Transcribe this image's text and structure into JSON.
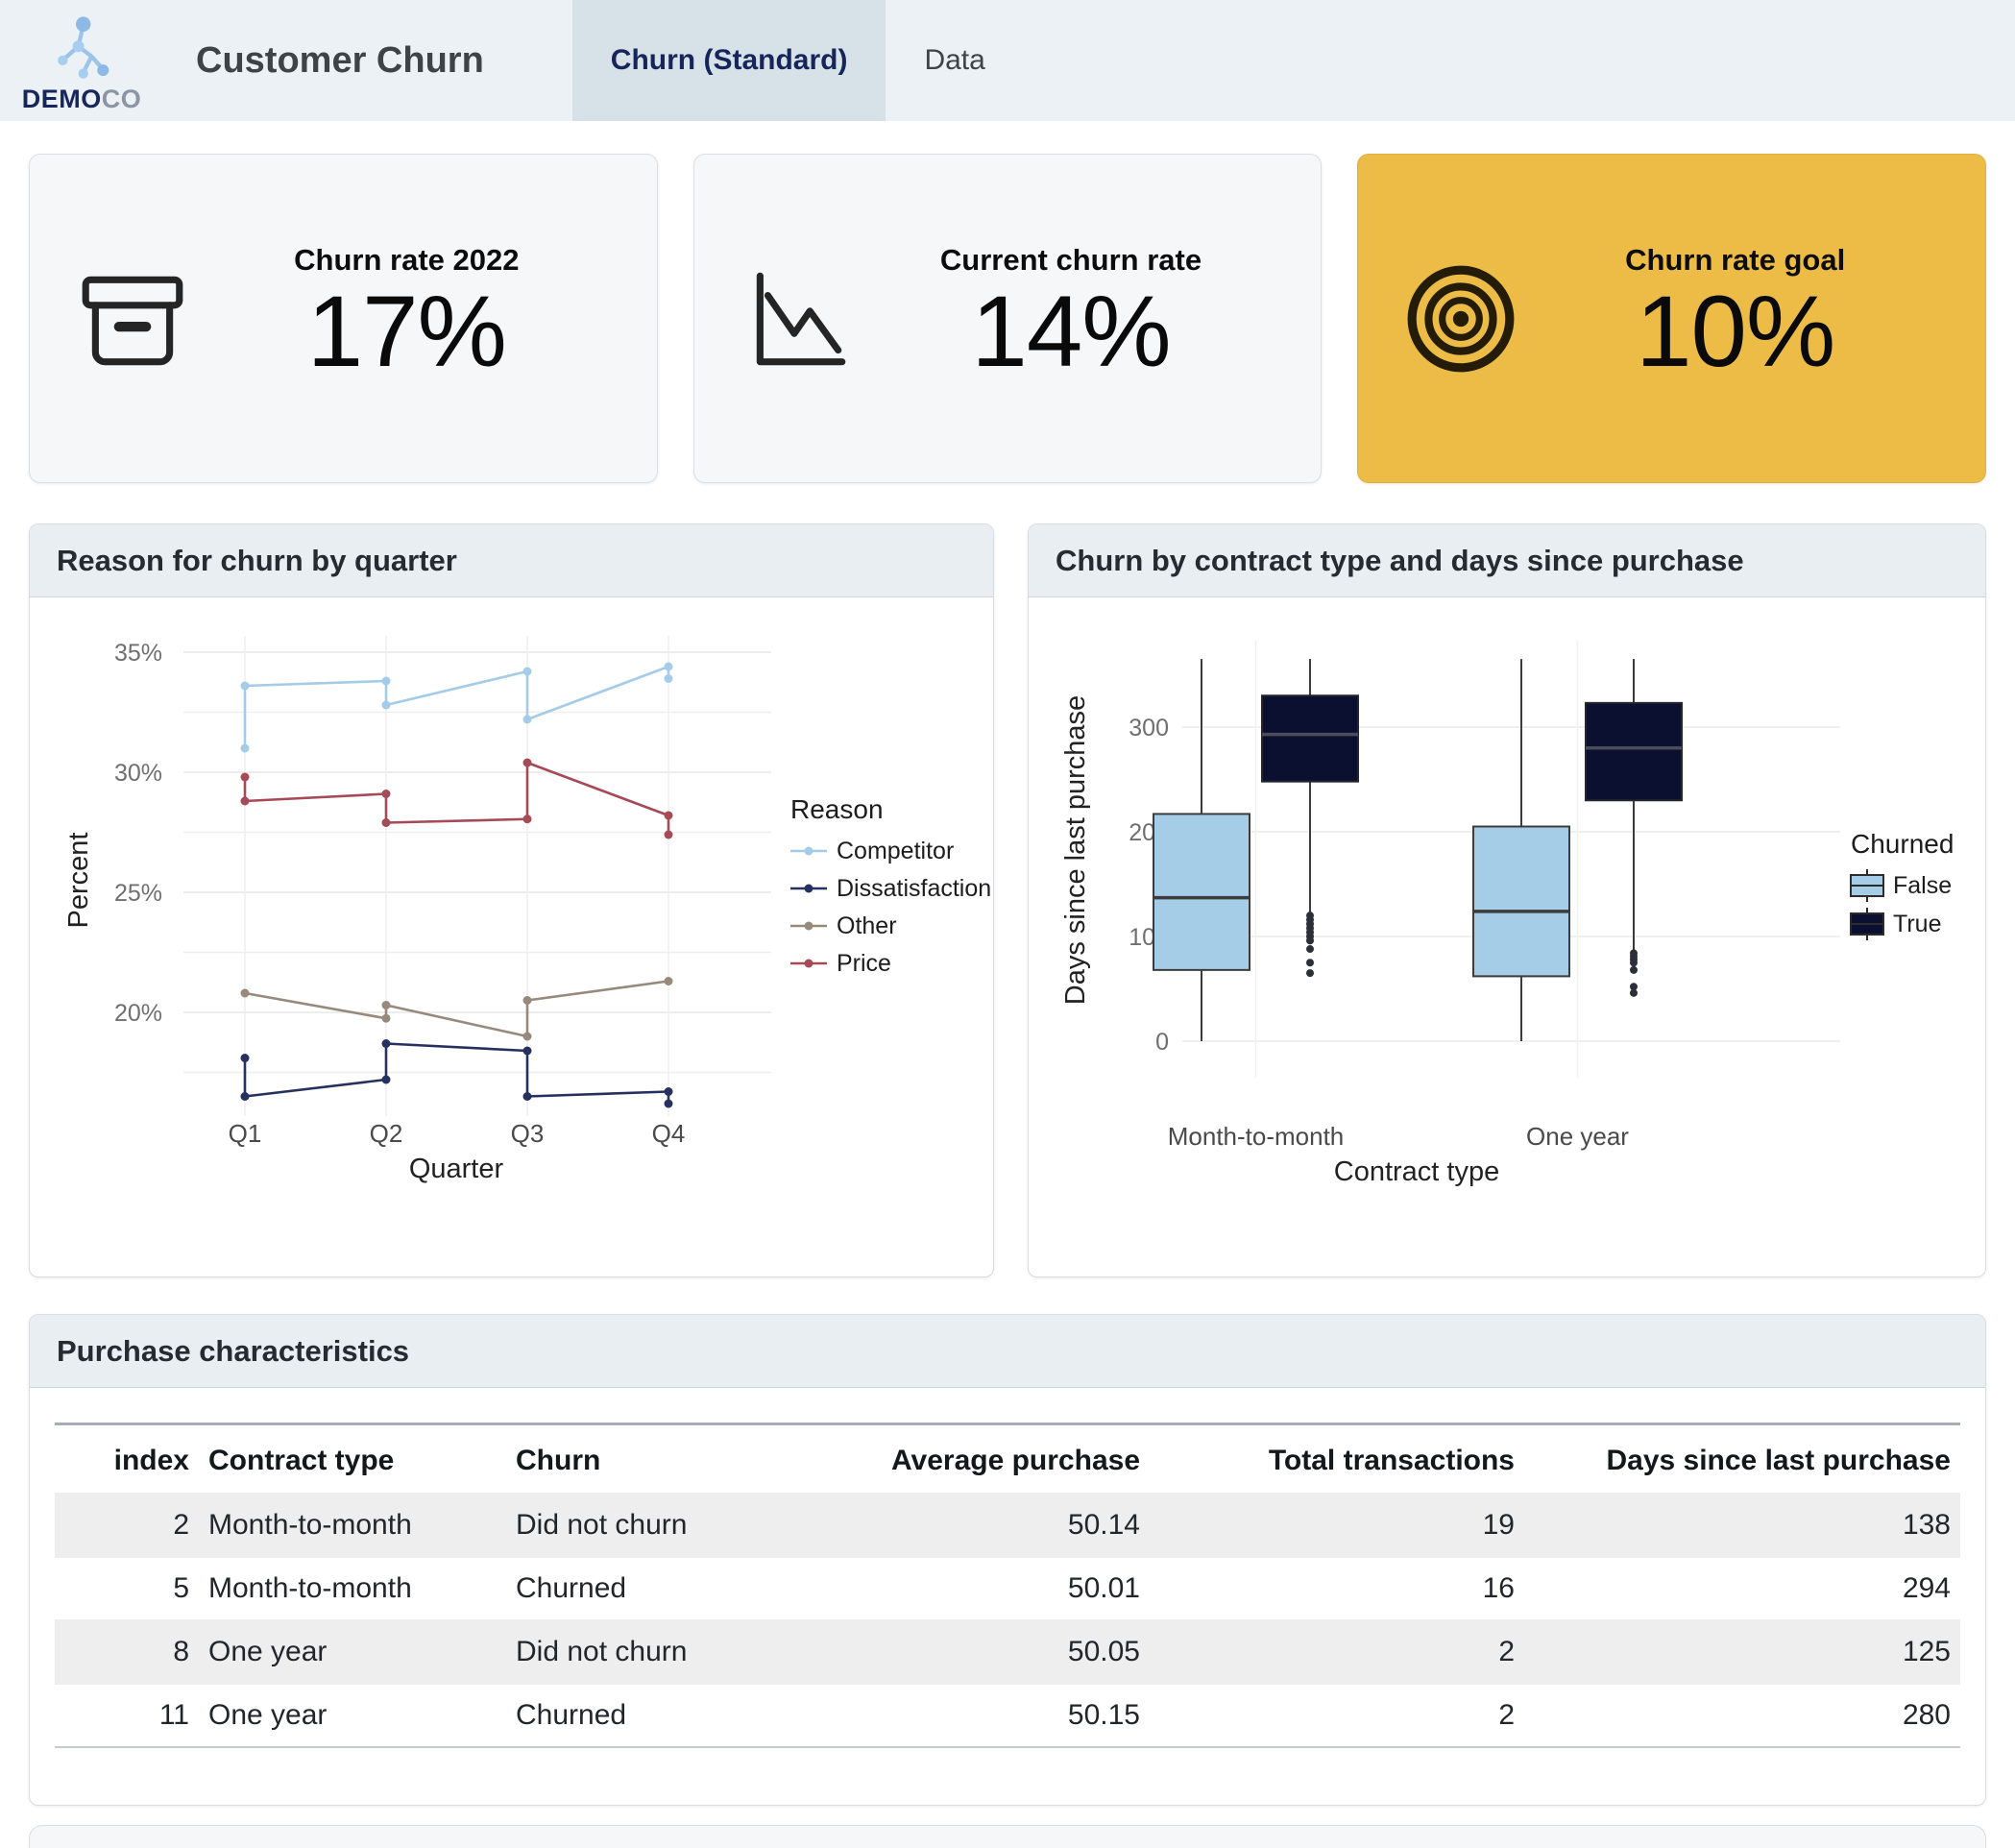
{
  "header": {
    "logo": {
      "brand_bold": "DEMO",
      "brand_light": "CO"
    },
    "title": "Customer Churn",
    "tabs": [
      {
        "label": "Churn (Standard)",
        "active": true
      },
      {
        "label": "Data",
        "active": false
      }
    ]
  },
  "kpis": [
    {
      "label": "Churn rate 2022",
      "value": "17%",
      "icon": "archive-box-icon",
      "variant": "default"
    },
    {
      "label": "Current churn rate",
      "value": "14%",
      "icon": "trend-down-icon",
      "variant": "default"
    },
    {
      "label": "Churn rate goal",
      "value": "10%",
      "icon": "target-icon",
      "variant": "highlight",
      "highlight_color": "#ecbc47"
    }
  ],
  "chart_data": [
    {
      "type": "line",
      "title": "Reason for churn by quarter",
      "xlabel": "Quarter",
      "ylabel": "Percent",
      "categories": [
        "Q1",
        "Q2",
        "Q3",
        "Q4"
      ],
      "ylim": [
        15.5,
        35.8
      ],
      "yticks_major": [
        20,
        25,
        30,
        35
      ],
      "ytick_suffix": "%",
      "yticks_minor": [
        17.5,
        22.5,
        27.5,
        32.5
      ],
      "grid": true,
      "legend_title": "Reason",
      "legend_position": "right",
      "series": [
        {
          "name": "Competitor",
          "color": "#a4cbe8",
          "points": [
            [
              0,
              31.0
            ],
            [
              0,
              33.6
            ],
            [
              1,
              33.8
            ],
            [
              1,
              32.8
            ],
            [
              2,
              34.2
            ],
            [
              2,
              32.2
            ],
            [
              3,
              34.4
            ],
            [
              3,
              33.9
            ]
          ]
        },
        {
          "name": "Dissatisfaction",
          "color": "#27315f",
          "points": [
            [
              0,
              18.1
            ],
            [
              0,
              16.5
            ],
            [
              1,
              17.2
            ],
            [
              1,
              18.7
            ],
            [
              2,
              18.4
            ],
            [
              2,
              16.5
            ],
            [
              3,
              16.7
            ],
            [
              3,
              16.2
            ]
          ]
        },
        {
          "name": "Other",
          "color": "#97897b",
          "points": [
            [
              0,
              20.8
            ],
            [
              1,
              19.75
            ],
            [
              1,
              20.3
            ],
            [
              2,
              19.0
            ],
            [
              2,
              20.5
            ],
            [
              3,
              21.3
            ]
          ]
        },
        {
          "name": "Price",
          "color": "#a54a57",
          "points": [
            [
              0,
              29.8
            ],
            [
              0,
              28.8
            ],
            [
              1,
              29.1
            ],
            [
              1,
              27.9
            ],
            [
              2,
              28.05
            ],
            [
              2,
              30.4
            ],
            [
              3,
              28.2
            ],
            [
              3,
              27.4
            ]
          ]
        }
      ]
    },
    {
      "type": "boxplot",
      "title": "Churn by contract type and days since purchase",
      "xlabel": "Contract type",
      "ylabel": "Days since last purchase",
      "categories": [
        "Month-to-month",
        "One year"
      ],
      "ylim": [
        -15,
        390
      ],
      "yticks": [
        0,
        100,
        200,
        300
      ],
      "grid": true,
      "legend_title": "Churned",
      "legend_position": "right",
      "groups": [
        {
          "name": "False",
          "color": "#a6cde7",
          "boxes": [
            {
              "lo": 0,
              "q1": 68,
              "med": 137,
              "q3": 217,
              "hi": 365,
              "outliers": []
            },
            {
              "lo": 0,
              "q1": 62,
              "med": 124,
              "q3": 205,
              "hi": 365,
              "outliers": []
            }
          ]
        },
        {
          "name": "True",
          "color": "#0c1030",
          "boxes": [
            {
              "lo": 120,
              "q1": 248,
              "med": 293,
              "q3": 330,
              "hi": 365,
              "outliers": [
                120,
                116,
                112,
                108,
                104,
                100,
                96,
                88,
                75,
                65
              ]
            },
            {
              "lo": 85,
              "q1": 230,
              "med": 280,
              "q3": 323,
              "hi": 365,
              "outliers": [
                84,
                81,
                78,
                75,
                68,
                52,
                46
              ]
            }
          ]
        }
      ]
    }
  ],
  "table": {
    "title": "Purchase characteristics",
    "columns": [
      "index",
      "Contract type",
      "Churn",
      "Average purchase",
      "Total transactions",
      "Days since last purchase"
    ],
    "aligns": [
      "right",
      "left",
      "left",
      "right",
      "right",
      "right"
    ],
    "rows": [
      [
        "2",
        "Month-to-month",
        "Did not churn",
        "50.14",
        "19",
        "138"
      ],
      [
        "5",
        "Month-to-month",
        "Churned",
        "50.01",
        "16",
        "294"
      ],
      [
        "8",
        "One year",
        "Did not churn",
        "50.05",
        "2",
        "125"
      ],
      [
        "11",
        "One year",
        "Churned",
        "50.15",
        "2",
        "280"
      ]
    ]
  }
}
